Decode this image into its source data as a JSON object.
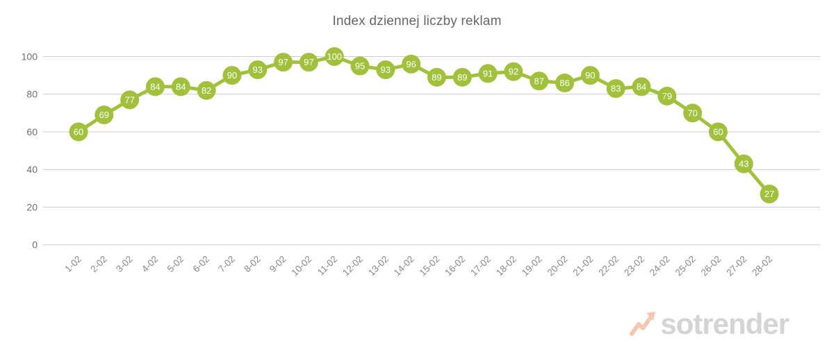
{
  "title": "Index dziennej liczby reklam",
  "watermark": {
    "text": "sotrender",
    "arrow_color": "#f6c7b0",
    "text_color": "#d4d4d4"
  },
  "colors": {
    "series": "#a1c13c",
    "marker_text": "#ffffff",
    "gridline": "#cccccc",
    "y_axis_text": "#707070",
    "x_axis_text": "#888888",
    "title_text": "#666666"
  },
  "chart_data": {
    "type": "line",
    "title": "Index dziennej liczby reklam",
    "categories": [
      "1-02",
      "2-02",
      "3-02",
      "4-02",
      "5-02",
      "6-02",
      "7-02",
      "8-02",
      "9-02",
      "10-02",
      "11-02",
      "12-02",
      "13-02",
      "14-02",
      "15-02",
      "16-02",
      "17-02",
      "18-02",
      "19-02",
      "20-02",
      "21-02",
      "22-02",
      "23-02",
      "24-02",
      "25-02",
      "26-02",
      "27-02",
      "28-02"
    ],
    "values": [
      60,
      69,
      77,
      84,
      84,
      82,
      90,
      93,
      97,
      97,
      100,
      95,
      93,
      96,
      89,
      89,
      91,
      92,
      87,
      86,
      90,
      83,
      84,
      79,
      70,
      60,
      43,
      27
    ],
    "xlabel": "",
    "ylabel": "",
    "ylim": [
      0,
      100
    ],
    "yticks": [
      0,
      20,
      40,
      60,
      80,
      100
    ],
    "grid": true,
    "legend_position": "none",
    "marker_labels": true,
    "x_label_rotation": -45
  }
}
